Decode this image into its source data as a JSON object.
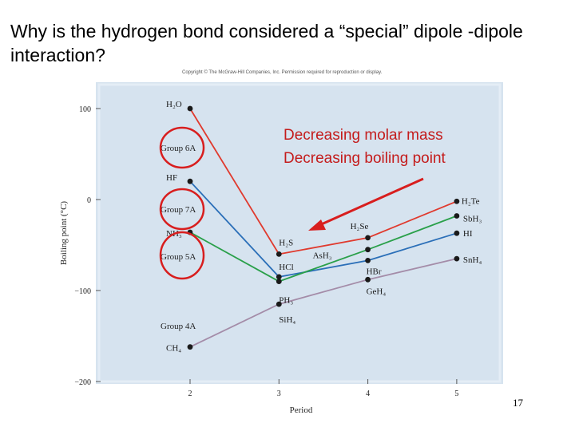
{
  "slide": {
    "title": "Why is the hydrogen bond considered a “special” dipole -dipole interaction?",
    "copyright": "Copyright © The McGraw-Hill Companies, Inc. Permission required for reproduction or display.",
    "slide_number": "17"
  },
  "annotation": {
    "line1": "Decreasing molar mass",
    "line2": "Decreasing boiling point"
  },
  "colors": {
    "group6A": "#e03a2e",
    "group7A": "#2b6fb8",
    "group5A": "#2aa04a",
    "group4A": "#a48ca8",
    "plot_bg": "#d6e3ef",
    "circle": "#d81e1e"
  },
  "chart_data": {
    "type": "line",
    "xlabel": "Period",
    "ylabel": "Boiling point (°C)",
    "x_ticks": [
      2,
      3,
      4,
      5
    ],
    "y_ticks": [
      100,
      0,
      -100,
      -200
    ],
    "xlim": [
      1,
      5.5
    ],
    "ylim": [
      -200,
      105
    ],
    "grid": false,
    "series": [
      {
        "name": "Group 6A",
        "color_key": "group6A",
        "x": [
          2,
          3,
          4,
          5
        ],
        "y": [
          100,
          -60,
          -42,
          -2
        ],
        "labels": [
          "H2O",
          "H2S",
          "H2Se",
          "H2Te"
        ]
      },
      {
        "name": "Group 7A",
        "color_key": "group7A",
        "x": [
          2,
          3,
          4,
          5
        ],
        "y": [
          20,
          -85,
          -67,
          -37
        ],
        "labels": [
          "HF",
          "HCl",
          "HBr",
          "HI"
        ]
      },
      {
        "name": "Group 5A",
        "color_key": "group5A",
        "x": [
          2,
          3,
          4,
          5
        ],
        "y": [
          -36,
          -90,
          -55,
          -18
        ],
        "labels": [
          "NH3",
          "PH3",
          "AsH3",
          "SbH3"
        ]
      },
      {
        "name": "Group 4A",
        "color_key": "group4A",
        "x": [
          2,
          3,
          4,
          5
        ],
        "y": [
          -162,
          -115,
          -88,
          -65
        ],
        "labels": [
          "CH4",
          "SiH4",
          "GeH4",
          "SnH4"
        ]
      }
    ]
  }
}
